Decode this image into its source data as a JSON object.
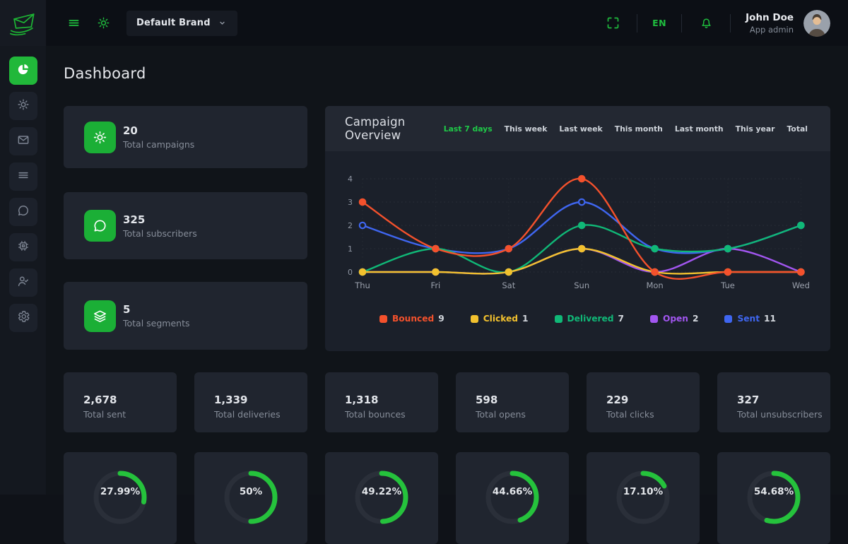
{
  "topbar": {
    "brand": {
      "label": "Default Brand"
    },
    "language": "EN",
    "user": {
      "name": "John Doe",
      "role": "App admin"
    }
  },
  "sidebar": {
    "items": [
      {
        "id": "dashboard",
        "icon": "pie-chart-icon",
        "active": true
      },
      {
        "id": "campaigns",
        "icon": "sun-icon",
        "active": false
      },
      {
        "id": "messages",
        "icon": "envelope-icon",
        "active": false
      },
      {
        "id": "lists",
        "icon": "menu-icon",
        "active": false
      },
      {
        "id": "subscribers",
        "icon": "chat-icon",
        "active": false
      },
      {
        "id": "api",
        "icon": "chip-icon",
        "active": false
      },
      {
        "id": "users",
        "icon": "user-check-icon",
        "active": false
      },
      {
        "id": "settings",
        "icon": "gear-icon",
        "active": false
      }
    ]
  },
  "page": {
    "title": "Dashboard"
  },
  "summary_cards": [
    {
      "value": "20",
      "label": "Total campaigns",
      "icon": "sun-icon"
    },
    {
      "value": "325",
      "label": "Total subscribers",
      "icon": "chat-icon"
    },
    {
      "value": "5",
      "label": "Total segments",
      "icon": "layers-icon"
    }
  ],
  "overview": {
    "title": "Campaign Overview",
    "filters": [
      {
        "label": "Last 7 days",
        "active": true
      },
      {
        "label": "This week",
        "active": false
      },
      {
        "label": "Last week",
        "active": false
      },
      {
        "label": "This month",
        "active": false
      },
      {
        "label": "Last month",
        "active": false
      },
      {
        "label": "This year",
        "active": false
      },
      {
        "label": "Total",
        "active": false
      }
    ]
  },
  "chart_data": {
    "type": "line",
    "x": [
      "Thu",
      "Fri",
      "Sat",
      "Sun",
      "Mon",
      "Tue",
      "Wed"
    ],
    "series": [
      {
        "name": "Bounced",
        "total": 9,
        "color": "#f4512c",
        "values": [
          3,
          1,
          1,
          4,
          0,
          0,
          0
        ]
      },
      {
        "name": "Clicked",
        "total": 1,
        "color": "#f2c12e",
        "values": [
          0,
          0,
          0,
          1,
          0,
          0,
          0
        ]
      },
      {
        "name": "Delivered",
        "total": 7,
        "color": "#10b877",
        "values": [
          0,
          1,
          0,
          2,
          1,
          1,
          2
        ]
      },
      {
        "name": "Open",
        "total": 2,
        "color": "#a256f0",
        "values": [
          0,
          0,
          0,
          1,
          0,
          1,
          0
        ]
      },
      {
        "name": "Sent",
        "total": 11,
        "color": "#3f66f0",
        "values": [
          2,
          1,
          1,
          3,
          1,
          1,
          2
        ]
      }
    ],
    "ylim": [
      0,
      4
    ],
    "yticks": [
      0,
      1,
      2,
      3,
      4
    ],
    "grid": true,
    "legend_position": "bottom",
    "title": "Campaign Overview"
  },
  "stats_cards": [
    {
      "value": "2,678",
      "label": "Total sent"
    },
    {
      "value": "1,339",
      "label": "Total deliveries"
    },
    {
      "value": "1,318",
      "label": "Total bounces"
    },
    {
      "value": "598",
      "label": "Total opens"
    },
    {
      "value": "229",
      "label": "Total clicks"
    },
    {
      "value": "327",
      "label": "Total unsubscribers"
    }
  ],
  "gauges": [
    {
      "label": "27.99%",
      "percent": 27.99
    },
    {
      "label": "50%",
      "percent": 50
    },
    {
      "label": "49.22%",
      "percent": 49.22
    },
    {
      "label": "44.66%",
      "percent": 44.66
    },
    {
      "label": "17.10%",
      "percent": 17.1
    },
    {
      "label": "54.68%",
      "percent": 54.68
    }
  ],
  "colors": {
    "accent_green": "#21b83a",
    "gauge_green": "#25c23c",
    "gauge_track": "#2a2f39",
    "card_bg": "#20252f",
    "topbar_bg": "#0c0f15"
  }
}
